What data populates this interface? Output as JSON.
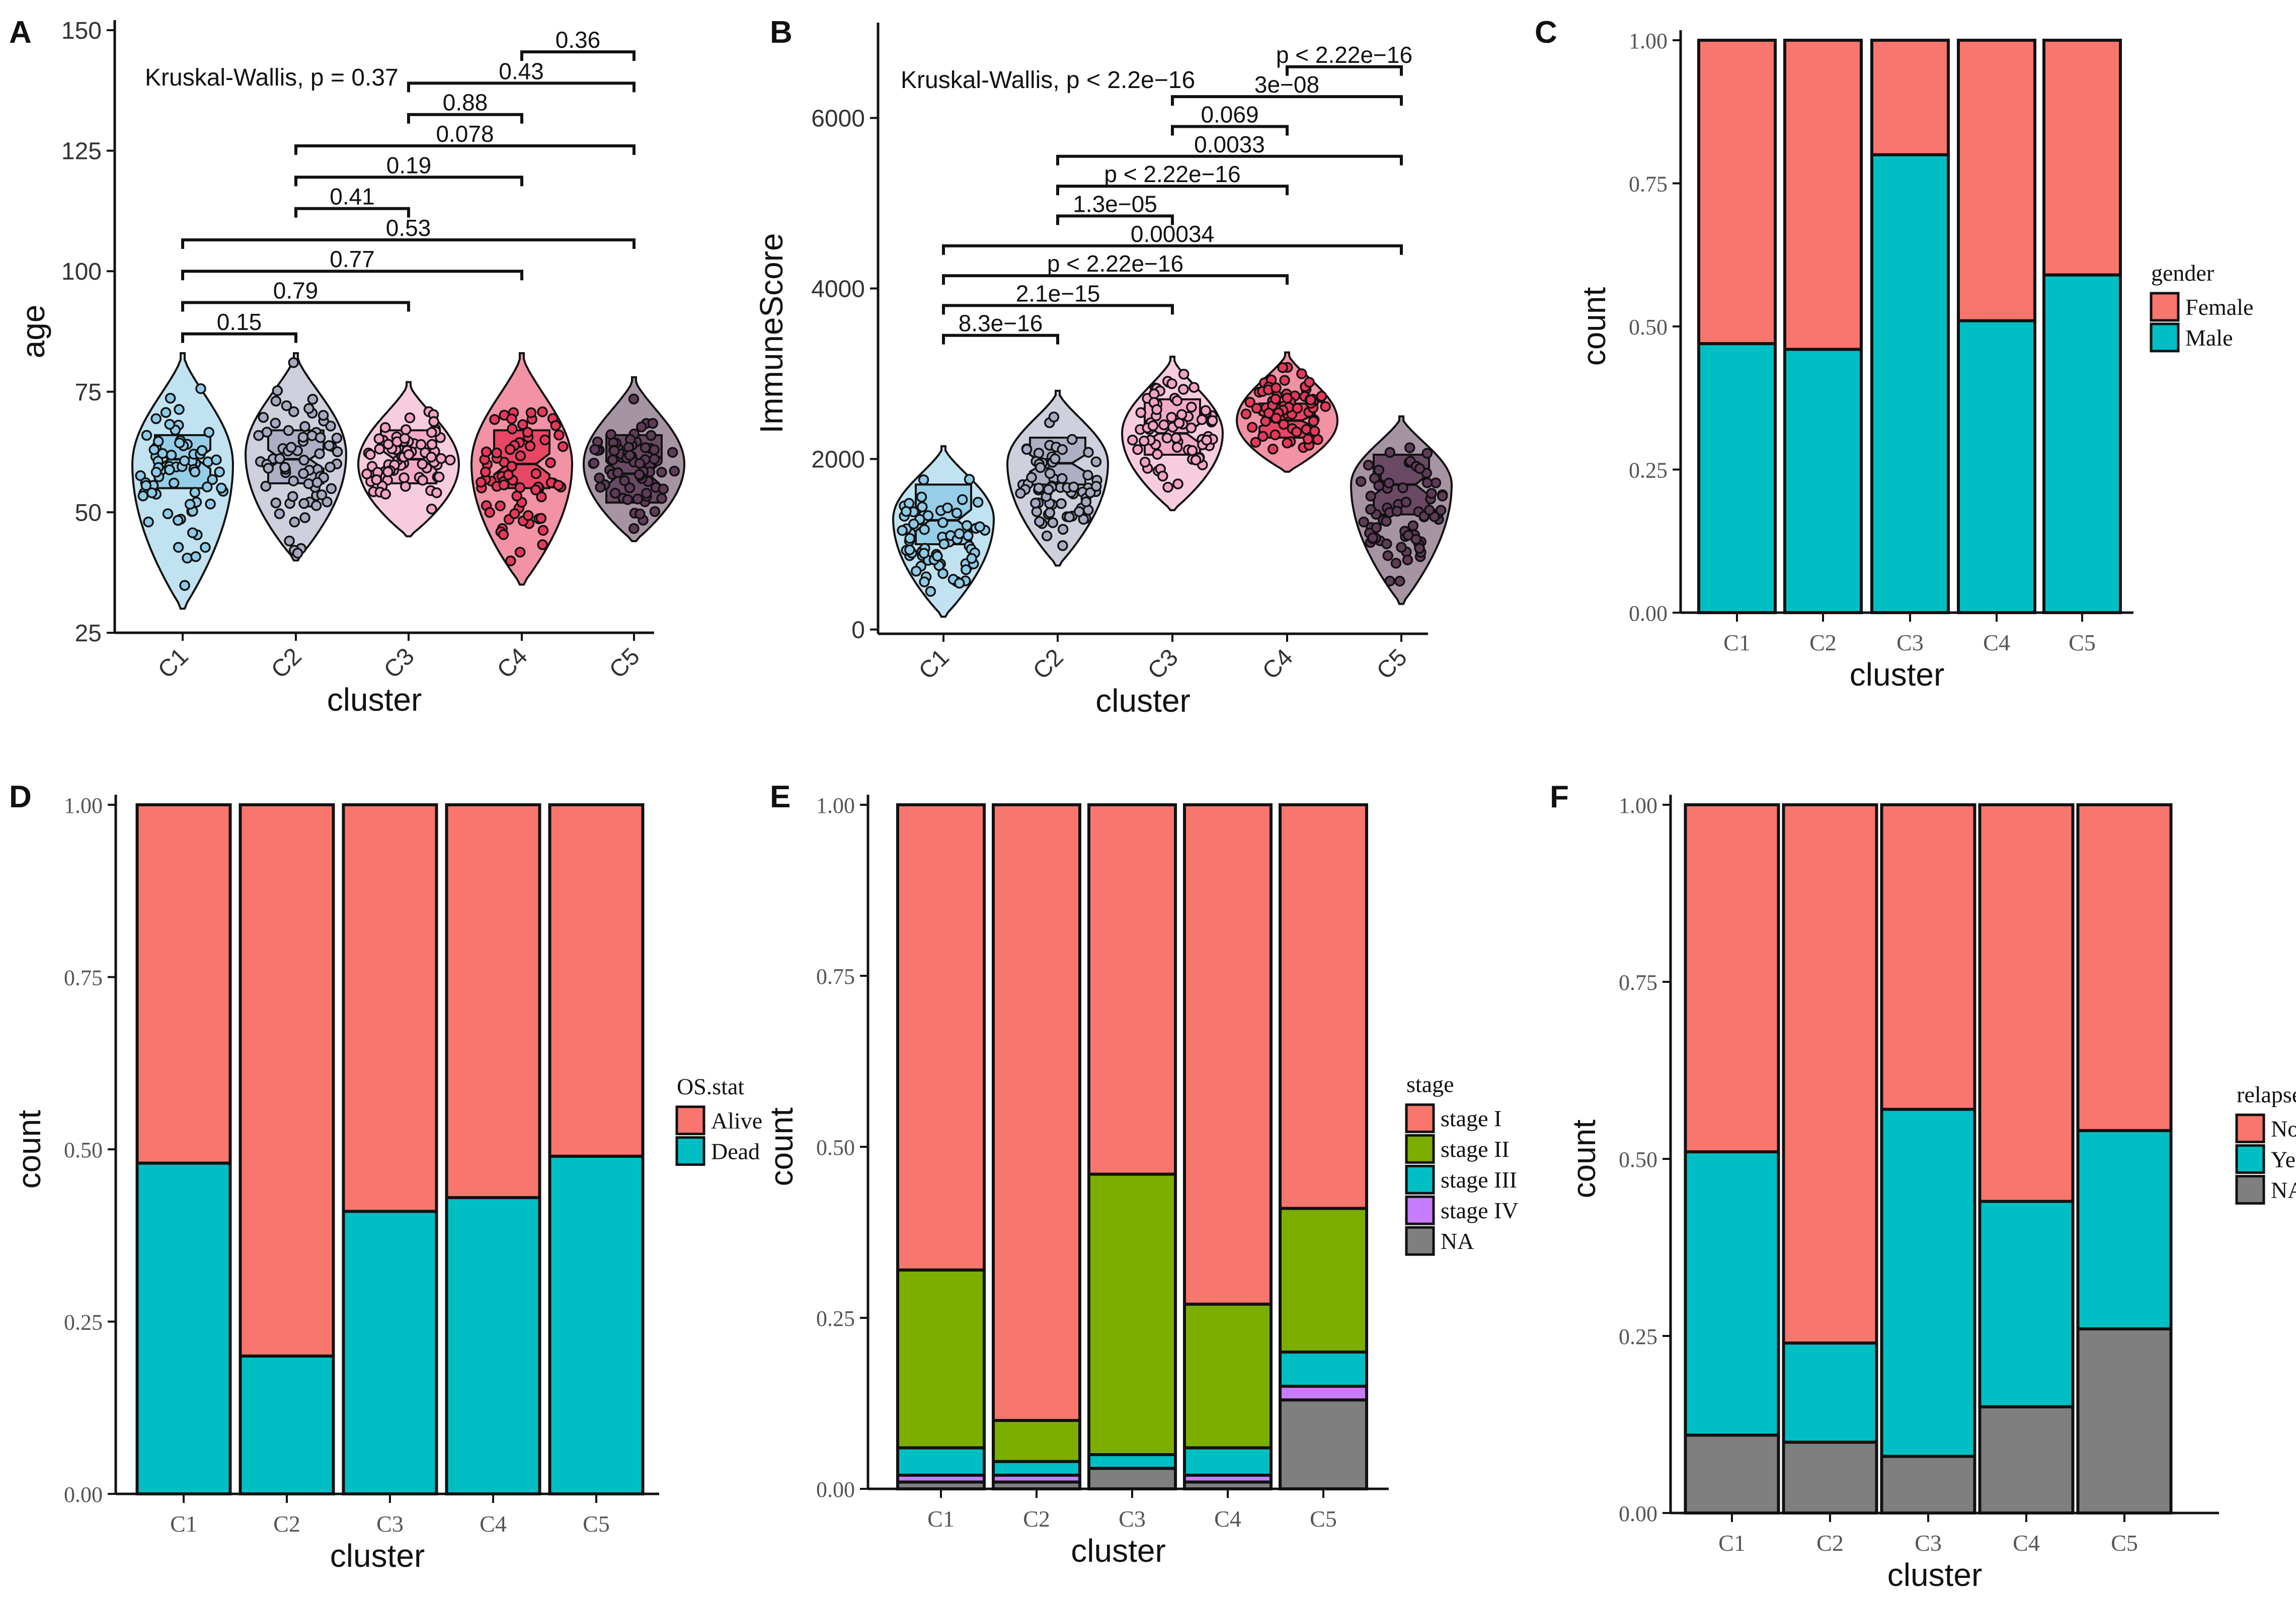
{
  "chart_data": [
    {
      "panel": "A",
      "type": "violin",
      "xlabel": "cluster",
      "ylabel": "age",
      "categories": [
        "C1",
        "C2",
        "C3",
        "C4",
        "C5"
      ],
      "ylim": [
        25,
        150
      ],
      "yticks": [
        25,
        50,
        75,
        100,
        125,
        150
      ],
      "test_label": "Kruskal-Wallis, p = 0.37",
      "colors": [
        "#8ecae6",
        "#a7a9c1",
        "#f2a3c4",
        "#e8385a",
        "#5e3c58"
      ],
      "violins": [
        {
          "min": 30,
          "max": 83,
          "mode": 60,
          "q1": 55,
          "median": 61,
          "q3": 66
        },
        {
          "min": 40,
          "max": 83,
          "mode": 62,
          "q1": 56,
          "median": 61,
          "q3": 67
        },
        {
          "min": 45,
          "max": 77,
          "mode": 60,
          "q1": 56,
          "median": 61,
          "q3": 67
        },
        {
          "min": 35,
          "max": 83,
          "mode": 60,
          "q1": 55,
          "median": 60,
          "q3": 67
        },
        {
          "min": 44,
          "max": 78,
          "mode": 60,
          "q1": 52,
          "median": 58,
          "q3": 66
        }
      ],
      "comparisons": [
        {
          "from": 1,
          "to": 2,
          "label": "0.15",
          "y": 87
        },
        {
          "from": 1,
          "to": 3,
          "label": "0.79",
          "y": 93.5
        },
        {
          "from": 1,
          "to": 4,
          "label": "0.77",
          "y": 100
        },
        {
          "from": 1,
          "to": 5,
          "label": "0.53",
          "y": 106.5
        },
        {
          "from": 2,
          "to": 3,
          "label": "0.41",
          "y": 113
        },
        {
          "from": 2,
          "to": 4,
          "label": "0.19",
          "y": 119.5
        },
        {
          "from": 2,
          "to": 5,
          "label": "0.078",
          "y": 126
        },
        {
          "from": 3,
          "to": 4,
          "label": "0.88",
          "y": 132.5
        },
        {
          "from": 3,
          "to": 5,
          "label": "0.43",
          "y": 139
        },
        {
          "from": 4,
          "to": 5,
          "label": "0.36",
          "y": 145.5
        }
      ]
    },
    {
      "panel": "B",
      "type": "violin",
      "xlabel": "cluster",
      "ylabel": "ImmuneScore",
      "categories": [
        "C1",
        "C2",
        "C3",
        "C4",
        "C5"
      ],
      "ylim": [
        -50,
        7000
      ],
      "yticks": [
        0,
        2000,
        4000,
        6000
      ],
      "test_label": "Kruskal-Wallis, p < 2.2e−16",
      "colors": [
        "#8ecae6",
        "#a7a9c1",
        "#f2a3c4",
        "#e8385a",
        "#5e3c58"
      ],
      "violins": [
        {
          "min": 150,
          "max": 2150,
          "mode": 1300,
          "q1": 1000,
          "median": 1280,
          "q3": 1700
        },
        {
          "min": 750,
          "max": 2800,
          "mode": 1950,
          "q1": 1700,
          "median": 1950,
          "q3": 2250
        },
        {
          "min": 1400,
          "max": 3200,
          "mode": 2300,
          "q1": 2050,
          "median": 2300,
          "q3": 2700
        },
        {
          "min": 1850,
          "max": 3250,
          "mode": 2450,
          "q1": 2250,
          "median": 2450,
          "q3": 2650
        },
        {
          "min": 300,
          "max": 2500,
          "mode": 1700,
          "q1": 1350,
          "median": 1700,
          "q3": 2050
        }
      ],
      "comparisons": [
        {
          "from": 1,
          "to": 2,
          "label": "8.3e−16",
          "y": 3450
        },
        {
          "from": 1,
          "to": 3,
          "label": "2.1e−15",
          "y": 3800
        },
        {
          "from": 1,
          "to": 4,
          "label": "p < 2.22e−16",
          "y": 4150
        },
        {
          "from": 1,
          "to": 5,
          "label": "0.00034",
          "y": 4500
        },
        {
          "from": 2,
          "to": 3,
          "label": "1.3e−05",
          "y": 4850
        },
        {
          "from": 2,
          "to": 4,
          "label": "p < 2.22e−16",
          "y": 5200
        },
        {
          "from": 2,
          "to": 5,
          "label": "0.0033",
          "y": 5550
        },
        {
          "from": 3,
          "to": 4,
          "label": "0.069",
          "y": 5900
        },
        {
          "from": 3,
          "to": 5,
          "label": "3e−08",
          "y": 6250
        },
        {
          "from": 4,
          "to": 5,
          "label": "p < 2.22e−16",
          "y": 6600
        }
      ]
    },
    {
      "panel": "C",
      "type": "bar",
      "stacked": true,
      "xlabel": "cluster",
      "ylabel": "count",
      "categories": [
        "C1",
        "C2",
        "C3",
        "C4",
        "C5"
      ],
      "ylim": [
        0,
        1
      ],
      "yticks": [
        "0.00",
        "0.25",
        "0.50",
        "0.75",
        "1.00"
      ],
      "legend_title": "gender",
      "series": [
        {
          "name": "Male",
          "color": "#00bfc4",
          "values": [
            0.47,
            0.46,
            0.8,
            0.51,
            0.59
          ]
        },
        {
          "name": "Female",
          "color": "#f8766d",
          "values": [
            0.53,
            0.54,
            0.2,
            0.49,
            0.41
          ]
        }
      ],
      "legend_order": [
        "Female",
        "Male"
      ]
    },
    {
      "panel": "D",
      "type": "bar",
      "stacked": true,
      "xlabel": "cluster",
      "ylabel": "count",
      "categories": [
        "C1",
        "C2",
        "C3",
        "C4",
        "C5"
      ],
      "ylim": [
        0,
        1
      ],
      "yticks": [
        "0.00",
        "0.25",
        "0.50",
        "0.75",
        "1.00"
      ],
      "legend_title": "OS.stat",
      "series": [
        {
          "name": "Dead",
          "color": "#00bfc4",
          "values": [
            0.48,
            0.2,
            0.41,
            0.43,
            0.49
          ]
        },
        {
          "name": "Alive",
          "color": "#f8766d",
          "values": [
            0.52,
            0.8,
            0.59,
            0.57,
            0.51
          ]
        }
      ],
      "legend_order": [
        "Alive",
        "Dead"
      ]
    },
    {
      "panel": "E",
      "type": "bar",
      "stacked": true,
      "xlabel": "cluster",
      "ylabel": "count",
      "categories": [
        "C1",
        "C2",
        "C3",
        "C4",
        "C5"
      ],
      "ylim": [
        0,
        1
      ],
      "yticks": [
        "0.00",
        "0.25",
        "0.50",
        "0.75",
        "1.00"
      ],
      "legend_title": "stage",
      "series": [
        {
          "name": "NA",
          "color": "#7f7f7f",
          "values": [
            0.01,
            0.01,
            0.03,
            0.01,
            0.13
          ]
        },
        {
          "name": "stage IV",
          "color": "#c77cff",
          "values": [
            0.01,
            0.01,
            0.0,
            0.01,
            0.02
          ]
        },
        {
          "name": "stage III",
          "color": "#00bfc4",
          "values": [
            0.04,
            0.02,
            0.02,
            0.04,
            0.05
          ]
        },
        {
          "name": "stage II",
          "color": "#7cae00",
          "values": [
            0.26,
            0.06,
            0.41,
            0.21,
            0.21
          ]
        },
        {
          "name": "stage I",
          "color": "#f8766d",
          "values": [
            0.68,
            0.9,
            0.54,
            0.73,
            0.59
          ]
        }
      ],
      "legend_order": [
        "stage I",
        "stage II",
        "stage III",
        "stage IV",
        "NA"
      ]
    },
    {
      "panel": "F",
      "type": "bar",
      "stacked": true,
      "xlabel": "cluster",
      "ylabel": "count",
      "categories": [
        "C1",
        "C2",
        "C3",
        "C4",
        "C5"
      ],
      "ylim": [
        0,
        1
      ],
      "yticks": [
        "0.00",
        "0.25",
        "0.50",
        "0.75",
        "1.00"
      ],
      "legend_title": "relapse",
      "series": [
        {
          "name": "NA",
          "color": "#7f7f7f",
          "values": [
            0.11,
            0.1,
            0.08,
            0.15,
            0.26
          ]
        },
        {
          "name": "Yes",
          "color": "#00bfc4",
          "values": [
            0.4,
            0.14,
            0.49,
            0.29,
            0.28
          ]
        },
        {
          "name": "No",
          "color": "#f8766d",
          "values": [
            0.49,
            0.76,
            0.43,
            0.56,
            0.46
          ]
        }
      ],
      "legend_order": [
        "No",
        "Yes",
        "NA"
      ]
    }
  ]
}
